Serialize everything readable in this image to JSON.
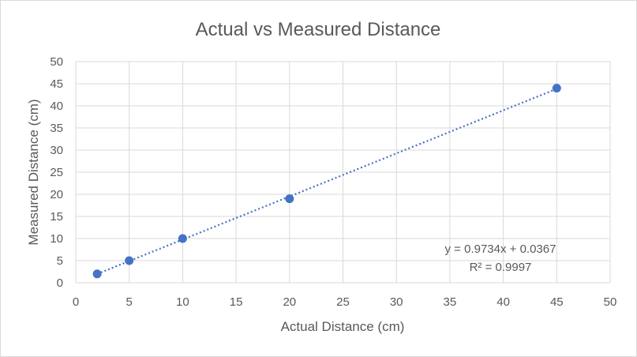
{
  "chart_data": {
    "type": "scatter",
    "title": "Actual vs Measured Distance",
    "xlabel": "Actual Distance (cm)",
    "ylabel": "Measured Distance (cm)",
    "xlim": [
      0,
      50
    ],
    "ylim": [
      0,
      50
    ],
    "x_ticks": [
      0,
      5,
      10,
      15,
      20,
      25,
      30,
      35,
      40,
      45,
      50
    ],
    "y_ticks": [
      0,
      5,
      10,
      15,
      20,
      25,
      30,
      35,
      40,
      45,
      50
    ],
    "grid": true,
    "marker_color": "#4472C4",
    "trendline_color": "#4472C4",
    "points": [
      {
        "x": 2,
        "y": 2
      },
      {
        "x": 5,
        "y": 5
      },
      {
        "x": 10,
        "y": 10
      },
      {
        "x": 20,
        "y": 19
      },
      {
        "x": 45,
        "y": 44
      }
    ],
    "trendline": {
      "slope": 0.9734,
      "intercept": 0.0367,
      "equation": "y = 0.9734x + 0.0367",
      "r_squared": "R² = 0.9997"
    }
  }
}
